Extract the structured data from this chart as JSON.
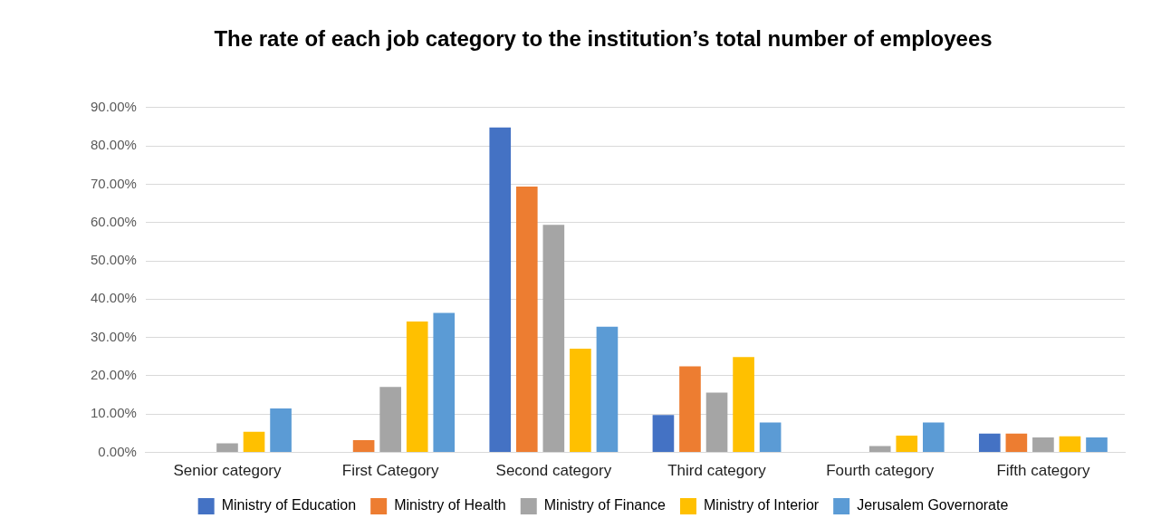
{
  "chart_data": {
    "type": "bar",
    "title": "The rate of each job category to the institution’s total number of employees",
    "categories": [
      "Senior category",
      "First Category",
      "Second category",
      "Third category",
      "Fourth category",
      "Fifth category"
    ],
    "series": [
      {
        "name": "Ministry of Education",
        "color": "#4472c4",
        "values": [
          null,
          null,
          84.8,
          9.8,
          null,
          4.9
        ]
      },
      {
        "name": "Ministry of Health",
        "color": "#ed7d31",
        "values": [
          null,
          3.2,
          69.4,
          22.5,
          null,
          4.9
        ]
      },
      {
        "name": "Ministry of Finance",
        "color": "#a5a5a5",
        "values": [
          2.4,
          17.1,
          59.4,
          15.6,
          1.7,
          3.9
        ]
      },
      {
        "name": "Ministry of Interior",
        "color": "#ffc000",
        "values": [
          5.4,
          34.2,
          27.1,
          24.9,
          4.4,
          4.2
        ]
      },
      {
        "name": "Jerusalem Governorate",
        "color": "#5b9bd5",
        "values": [
          11.5,
          36.4,
          32.8,
          7.8,
          7.8,
          3.9
        ]
      }
    ],
    "ylim": [
      0,
      90
    ],
    "yticks": [
      {
        "value": 0,
        "label": "0.00%"
      },
      {
        "value": 10,
        "label": "10.00%"
      },
      {
        "value": 20,
        "label": "20.00%"
      },
      {
        "value": 30,
        "label": "30.00%"
      },
      {
        "value": 40,
        "label": "40.00%"
      },
      {
        "value": 50,
        "label": "50.00%"
      },
      {
        "value": 60,
        "label": "60.00%"
      },
      {
        "value": 70,
        "label": "70.00%"
      },
      {
        "value": 80,
        "label": "80.00%"
      },
      {
        "value": 90,
        "label": "90.00%"
      }
    ],
    "grid": "y",
    "legend": "bottom"
  }
}
